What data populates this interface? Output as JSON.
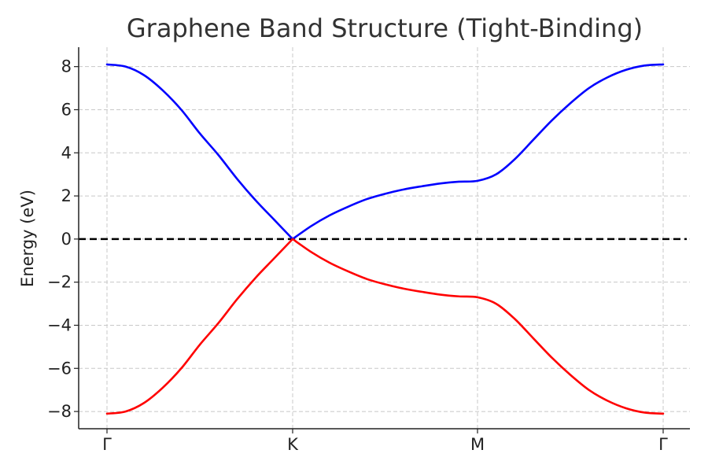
{
  "chart_data": {
    "type": "line",
    "title": "Graphene Band Structure (Tight-Binding)",
    "xlabel": "",
    "ylabel": "Energy (eV)",
    "x_ticks": [
      "Γ",
      "K",
      "M",
      "Γ"
    ],
    "y_ticks": [
      "8",
      "6",
      "4",
      "2",
      "0",
      "−2",
      "−4",
      "−6",
      "−8"
    ],
    "y_tick_values": [
      8,
      6,
      4,
      2,
      0,
      -2,
      -4,
      -6,
      -8
    ],
    "ylim": [
      -8.8,
      8.9
    ],
    "grid": true,
    "series": [
      {
        "color": "#0000ff",
        "x": [
          0,
          0.1,
          0.2,
          0.3,
          0.4,
          0.5,
          0.6,
          0.7,
          0.8,
          0.9,
          1.0,
          1.1,
          1.2,
          1.3,
          1.4,
          1.5,
          1.6,
          1.7,
          1.8,
          1.9,
          2.0,
          2.1,
          2.2,
          2.3,
          2.4,
          2.5,
          2.6,
          2.7,
          2.8,
          2.9,
          3.0
        ],
        "values": [
          8.1,
          8.0,
          7.6,
          6.9,
          6.0,
          4.9,
          3.9,
          2.8,
          1.8,
          0.9,
          0.0,
          0.6,
          1.1,
          1.5,
          1.85,
          2.1,
          2.3,
          2.45,
          2.58,
          2.66,
          2.7,
          3.0,
          3.7,
          4.6,
          5.5,
          6.3,
          7.0,
          7.5,
          7.85,
          8.05,
          8.1
        ]
      },
      {
        "color": "#ff0000",
        "x": [
          0,
          0.1,
          0.2,
          0.3,
          0.4,
          0.5,
          0.6,
          0.7,
          0.8,
          0.9,
          1.0,
          1.1,
          1.2,
          1.3,
          1.4,
          1.5,
          1.6,
          1.7,
          1.8,
          1.9,
          2.0,
          2.1,
          2.2,
          2.3,
          2.4,
          2.5,
          2.6,
          2.7,
          2.8,
          2.9,
          3.0
        ],
        "values": [
          -8.1,
          -8.0,
          -7.6,
          -6.9,
          -6.0,
          -4.9,
          -3.9,
          -2.8,
          -1.8,
          -0.9,
          0.0,
          -0.6,
          -1.1,
          -1.5,
          -1.85,
          -2.1,
          -2.3,
          -2.45,
          -2.58,
          -2.66,
          -2.7,
          -3.0,
          -3.7,
          -4.6,
          -5.5,
          -6.3,
          -7.0,
          -7.5,
          -7.85,
          -8.05,
          -8.1
        ]
      }
    ],
    "reference_line": {
      "y": 0,
      "color": "#000000",
      "style": "dashed"
    }
  }
}
